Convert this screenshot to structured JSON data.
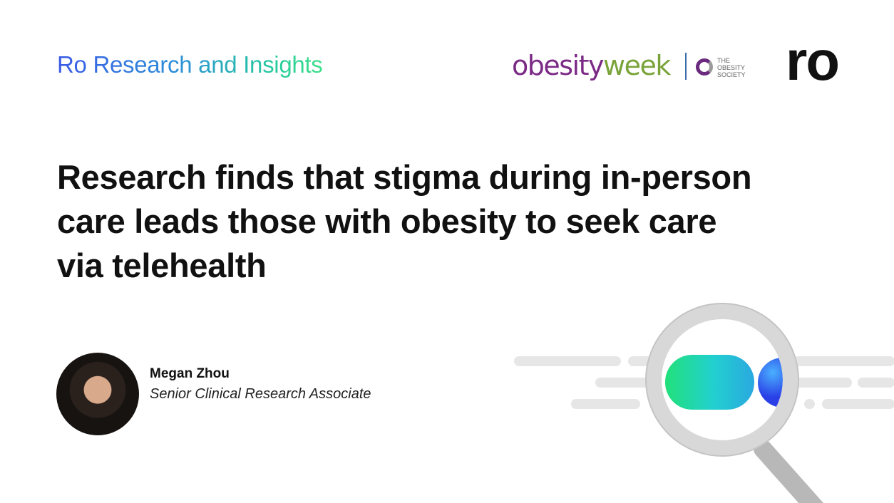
{
  "header": {
    "kicker": "Ro Research and Insights",
    "logos": {
      "obesityweek_part1": "obesity",
      "obesityweek_part2": "week",
      "obesity_society": [
        "THE",
        "OBESITY",
        "SOCIETY"
      ],
      "ro": "ro"
    }
  },
  "title_lines": [
    "Research finds that stigma during in-person",
    "care leads those with obesity to seek care",
    "via telehealth"
  ],
  "author": {
    "name": "Megan Zhou",
    "role": "Senior Clinical Research Associate"
  },
  "colors": {
    "obesityweek_purple": "#7b2a86",
    "obesityweek_green": "#7aa33a",
    "kicker_gradient_start": "#3a5be6",
    "kicker_gradient_end": "#3fe08a"
  },
  "illustration": "magnifying-glass"
}
